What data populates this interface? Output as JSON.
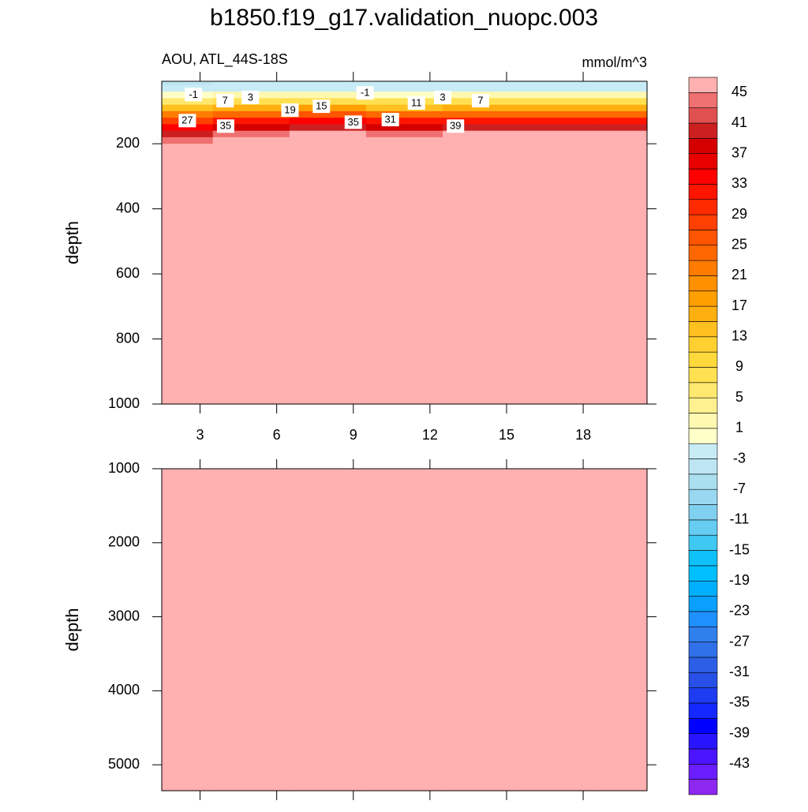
{
  "chart_data": [
    {
      "type": "contour",
      "title": "b1850.f19_g17.validation_nuopc.003",
      "subtitle": "AOU, ATL_44S-18S",
      "units": "mmol/m^3",
      "ylabel": "depth",
      "xlim": [
        1.5,
        20.5
      ],
      "xticks": [
        3,
        6,
        9,
        12,
        15,
        18
      ],
      "ylim": [
        8,
        1000
      ],
      "yticks": [
        200,
        400,
        600,
        800,
        1000
      ],
      "y_reversed": true,
      "x": [
        2,
        5,
        8,
        11,
        14,
        17,
        20
      ],
      "depth": [
        10,
        30,
        50,
        70,
        90,
        110,
        130,
        150,
        170,
        190,
        210,
        400,
        1000
      ],
      "values": [
        [
          -4,
          -3,
          -3,
          -3,
          -3,
          -3,
          -3
        ],
        [
          -2,
          -2,
          -2,
          -2,
          -2,
          -2,
          -2
        ],
        [
          0,
          1,
          2,
          0,
          2,
          1,
          1
        ],
        [
          5,
          7,
          8,
          7,
          7,
          8,
          7
        ],
        [
          13,
          15,
          17,
          14,
          15,
          16,
          15
        ],
        [
          21,
          23,
          25,
          23,
          23,
          24,
          23
        ],
        [
          27,
          31,
          33,
          31,
          31,
          32,
          31
        ],
        [
          33,
          37,
          39,
          37,
          39,
          40,
          39
        ],
        [
          39,
          43,
          45,
          44,
          45,
          46,
          45
        ],
        [
          43,
          46,
          48,
          47,
          48,
          48,
          48
        ],
        [
          46,
          48,
          50,
          50,
          50,
          50,
          50
        ],
        [
          50,
          50,
          50,
          50,
          50,
          50,
          50
        ],
        [
          50,
          50,
          50,
          50,
          50,
          50,
          50
        ]
      ],
      "contour_labels": [
        {
          "value": -1,
          "x": 2.74,
          "depth": 50
        },
        {
          "value": 7,
          "x": 3.98,
          "depth": 69
        },
        {
          "value": 3,
          "x": 4.97,
          "depth": 59
        },
        {
          "value": 19,
          "x": 6.52,
          "depth": 98
        },
        {
          "value": 15,
          "x": 7.75,
          "depth": 86
        },
        {
          "value": -1,
          "x": 9.46,
          "depth": 45
        },
        {
          "value": 11,
          "x": 11.47,
          "depth": 76
        },
        {
          "value": 3,
          "x": 12.5,
          "depth": 59
        },
        {
          "value": 7,
          "x": 13.98,
          "depth": 69
        },
        {
          "value": 27,
          "x": 2.5,
          "depth": 130
        },
        {
          "value": 35,
          "x": 4,
          "depth": 147
        },
        {
          "value": 35,
          "x": 9,
          "depth": 135
        },
        {
          "value": 31,
          "x": 10.45,
          "depth": 127
        },
        {
          "value": 39,
          "x": 13,
          "depth": 147
        }
      ],
      "colorbar": {
        "clim": [
          -47,
          47
        ],
        "ticks": [
          -43,
          -39,
          -35,
          -31,
          -27,
          -23,
          -19,
          -15,
          -11,
          -7,
          -3,
          1,
          5,
          9,
          13,
          17,
          21,
          25,
          29,
          33,
          37,
          41,
          45
        ],
        "colors": [
          "#8c28f0",
          "#6a1eff",
          "#4b14ff",
          "#2814ff",
          "#0000ff",
          "#1428ff",
          "#1e3cf0",
          "#2850e6",
          "#2d5fe6",
          "#3070e8",
          "#2f7fec",
          "#1e90ff",
          "#0aa0ff",
          "#00b0ff",
          "#00bfff",
          "#10c0f8",
          "#40c8f5",
          "#66ccf2",
          "#80d0f0",
          "#99d8f0",
          "#aadff0",
          "#bde6f2",
          "#c8ecf5",
          "#ffffc8",
          "#fff8b0",
          "#fff090",
          "#ffe870",
          "#ffe050",
          "#ffd83c",
          "#ffd030",
          "#ffc020",
          "#ffb010",
          "#ffa000",
          "#ff9000",
          "#ff7c00",
          "#ff6800",
          "#ff5400",
          "#ff4000",
          "#ff2a00",
          "#ff1400",
          "#ff0000",
          "#e80000",
          "#d40000",
          "#cc2020",
          "#e05050",
          "#ee7070",
          "#ffb0b0"
        ]
      }
    },
    {
      "type": "contour",
      "ylabel": "depth",
      "ylim": [
        1000,
        5350
      ],
      "yticks": [
        1000,
        2000,
        3000,
        4000,
        5000
      ],
      "y_reversed": true,
      "x": [
        2,
        5,
        8,
        11,
        14,
        17,
        20
      ],
      "depth": [
        1000,
        3000,
        5000
      ],
      "values": [
        [
          50,
          50,
          50,
          50,
          50,
          50,
          50
        ],
        [
          50,
          50,
          50,
          50,
          50,
          50,
          50
        ],
        [
          50,
          50,
          50,
          50,
          50,
          50,
          50
        ]
      ]
    }
  ]
}
